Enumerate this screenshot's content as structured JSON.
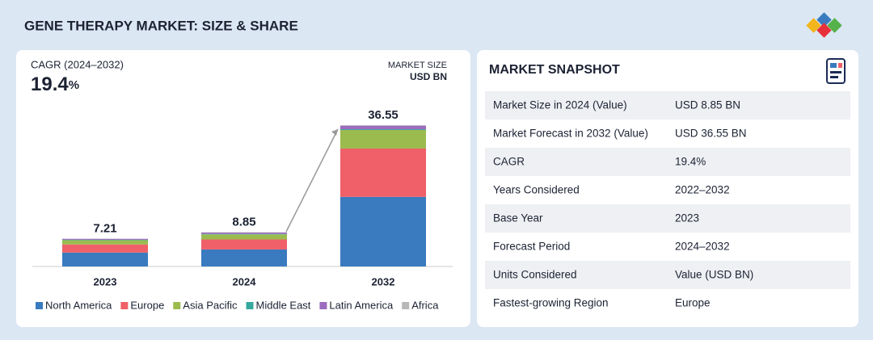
{
  "header": {
    "title": "GENE THERAPY MARKET: SIZE & SHARE"
  },
  "cagr": {
    "label": "CAGR (2024–2032)",
    "value": "19.4",
    "unit": "%"
  },
  "market_size": {
    "line1": "MARKET SIZE",
    "line2": "USD BN"
  },
  "chart_data": {
    "type": "stacked-bar",
    "categories": [
      "2023",
      "2024",
      "2032"
    ],
    "totals": [
      7.21,
      8.85,
      36.55
    ],
    "series": [
      {
        "name": "North America",
        "color": "#3a7bbf",
        "values": [
          3.6,
          4.4,
          18.0
        ]
      },
      {
        "name": "Europe",
        "color": "#ef6068",
        "values": [
          2.1,
          2.6,
          12.5
        ]
      },
      {
        "name": "Asia Pacific",
        "color": "#9bbb4f",
        "values": [
          1.1,
          1.3,
          4.8
        ]
      },
      {
        "name": "Middle East",
        "color": "#36a89d",
        "values": [
          0.1,
          0.12,
          0.2
        ]
      },
      {
        "name": "Latin America",
        "color": "#9c6cc0",
        "values": [
          0.25,
          0.35,
          0.9
        ]
      },
      {
        "name": "Africa",
        "color": "#b8b8b8",
        "values": [
          0.06,
          0.08,
          0.15
        ]
      }
    ]
  },
  "snapshot": {
    "title": "MARKET SNAPSHOT",
    "rows": [
      [
        "Market Size in 2024 (Value)",
        "USD 8.85 BN"
      ],
      [
        "Market Forecast in 2032 (Value)",
        "USD 36.55 BN"
      ],
      [
        "CAGR",
        "19.4%"
      ],
      [
        "Years Considered",
        "2022–2032"
      ],
      [
        "Base Year",
        "2023"
      ],
      [
        "Forecast Period",
        "2024–2032"
      ],
      [
        "Units Considered",
        "Value (USD BN)"
      ],
      [
        "Fastest-growing Region",
        "Europe"
      ]
    ]
  }
}
